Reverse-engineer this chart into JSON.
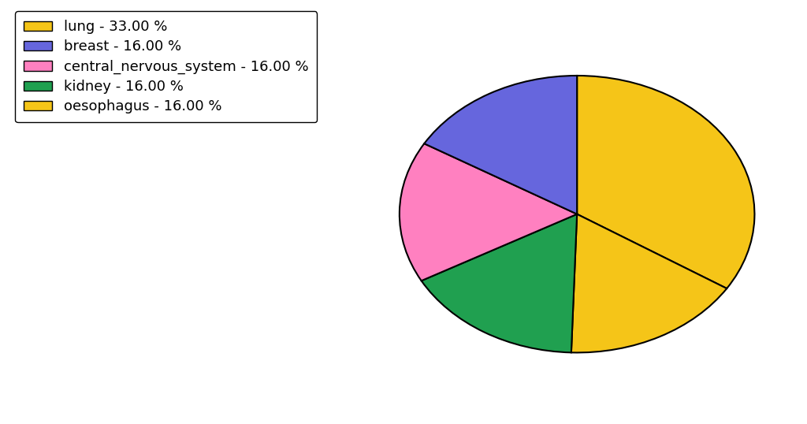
{
  "labels": [
    "lung",
    "oesophagus",
    "kidney",
    "central_nervous_system",
    "breast"
  ],
  "values": [
    33.0,
    16.0,
    16.0,
    16.0,
    16.0
  ],
  "colors": [
    "#F5C518",
    "#F5C518",
    "#20A050",
    "#FF80C0",
    "#6666DD"
  ],
  "legend_labels": [
    "lung - 33.00 %",
    "breast - 16.00 %",
    "central_nervous_system - 16.00 %",
    "kidney - 16.00 %",
    "oesophagus - 16.00 %"
  ],
  "legend_colors": [
    "#F5C518",
    "#6666DD",
    "#FF80C0",
    "#20A050",
    "#F5C518"
  ],
  "edge_color": "black",
  "edge_width": 1.5,
  "startangle": 90,
  "figsize": [
    10.24,
    5.38
  ],
  "dpi": 100,
  "background_color": "#ffffff",
  "legend_fontsize": 13
}
